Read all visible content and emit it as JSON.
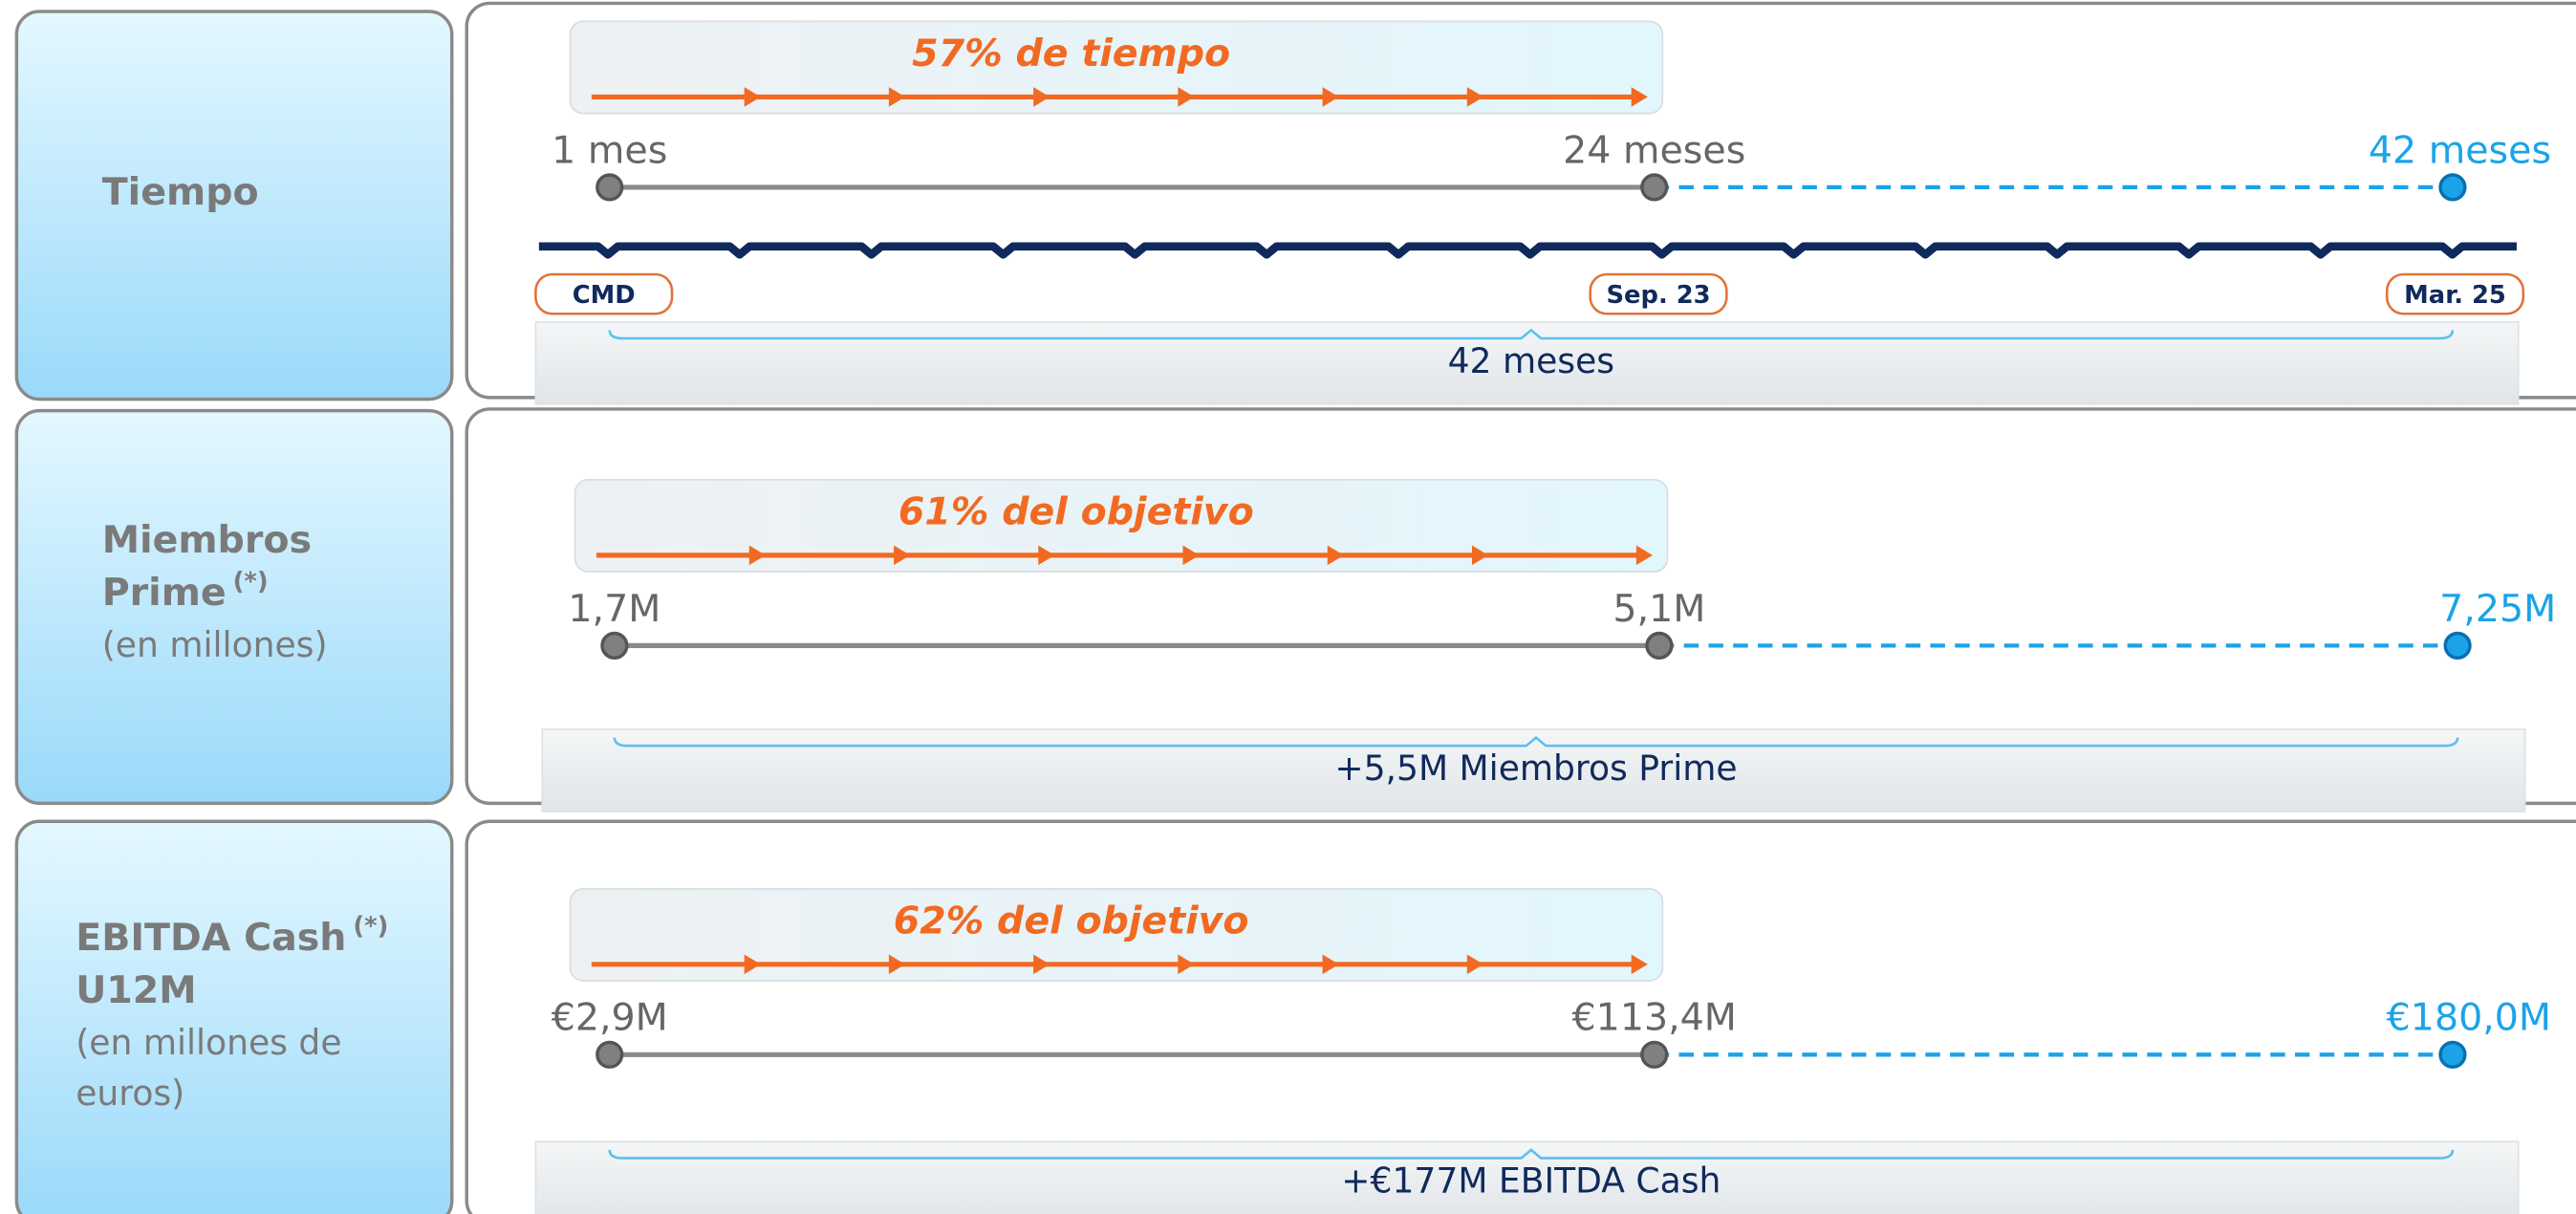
{
  "rows": [
    {
      "title_lines": [
        {
          "text": "Tiempo"
        }
      ],
      "progress_label": "57% de tiempo",
      "start": "1 mes",
      "current": "24 meses",
      "target": "42 meses",
      "dates": [
        "CMD",
        "Sep. 23",
        "Mar. 25"
      ],
      "total_label": "42 meses"
    },
    {
      "title_lines": [
        {
          "text": "Miembros"
        },
        {
          "text": "Prime",
          "footnote": "(*)"
        }
      ],
      "subtitle_lines": [
        "(en millones)"
      ],
      "progress_label": "61% del objetivo",
      "start": "1,7M",
      "current": "5,1M",
      "target": "7,25M",
      "total_label": "+5,5M  Miembros Prime"
    },
    {
      "title_lines": [
        {
          "text": "EBITDA Cash",
          "footnote": "(*)"
        },
        {
          "text": "U12M"
        }
      ],
      "subtitle_lines": [
        "(en millones de",
        "euros)"
      ],
      "progress_label": "62% del objetivo",
      "start": "€2,9M",
      "current": "€113,4M",
      "target": "€180,0M",
      "total_label": "+€177M EBITDA Cash"
    }
  ]
}
